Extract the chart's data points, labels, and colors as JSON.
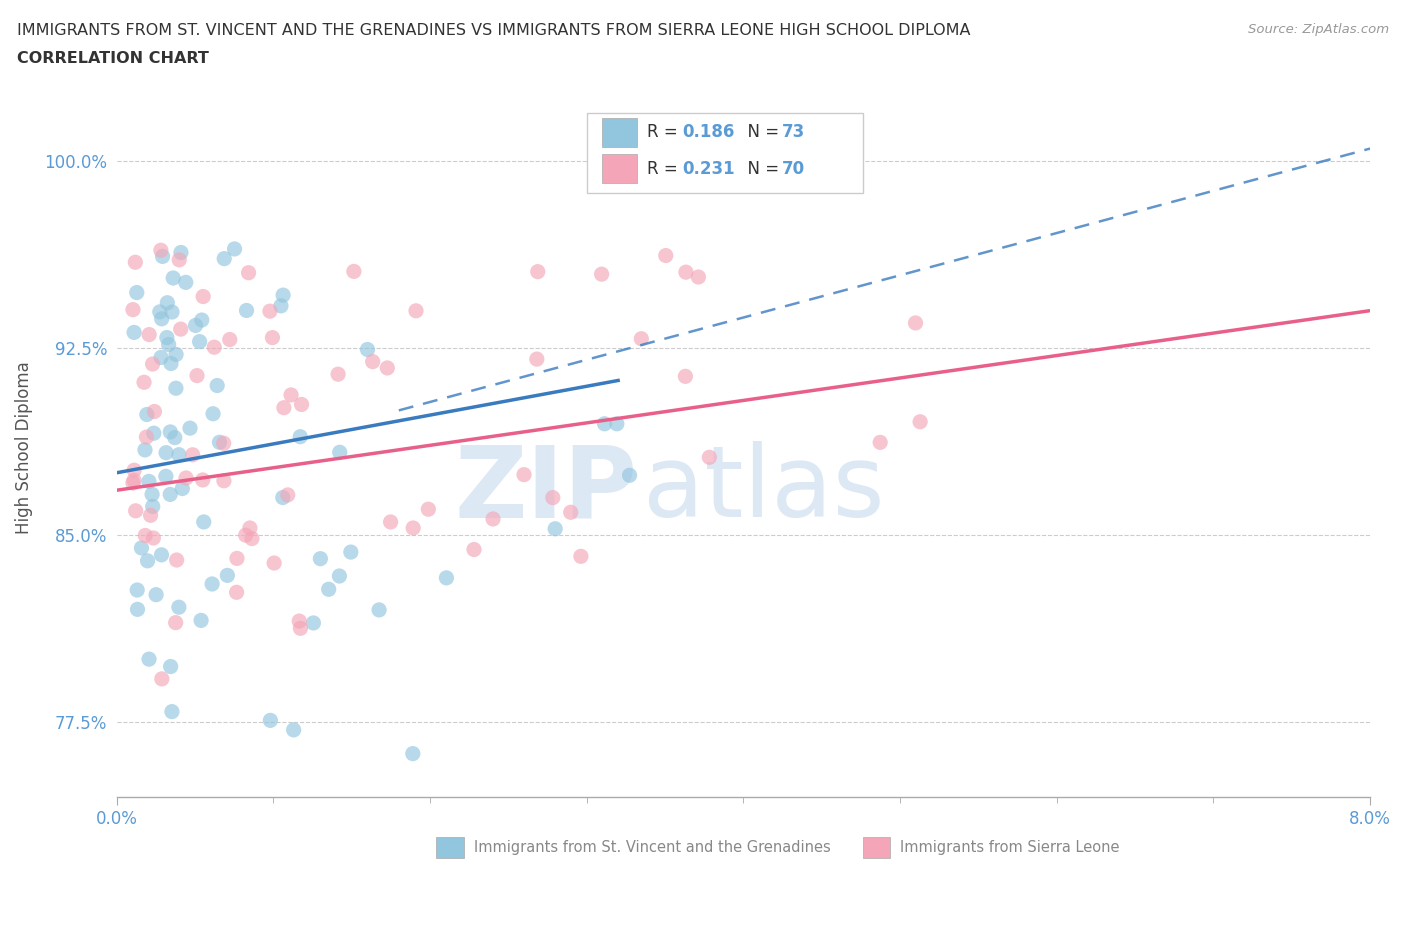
{
  "title_line1": "IMMIGRANTS FROM ST. VINCENT AND THE GRENADINES VS IMMIGRANTS FROM SIERRA LEONE HIGH SCHOOL DIPLOMA",
  "title_line2": "CORRELATION CHART",
  "source_text": "Source: ZipAtlas.com",
  "ylabel": "High School Diploma",
  "x_min": 0.0,
  "x_max": 0.08,
  "y_min": 0.745,
  "y_max": 1.025,
  "yticks": [
    0.775,
    0.85,
    0.925,
    1.0
  ],
  "ytick_labels": [
    "77.5%",
    "85.0%",
    "92.5%",
    "100.0%"
  ],
  "color_blue": "#92c5de",
  "color_pink": "#f4a6b8",
  "color_trend_blue": "#3a7bbf",
  "color_trend_pink": "#e8608a",
  "color_axis": "#5b9bd5",
  "background_color": "#ffffff",
  "watermark_zip": "ZIP",
  "watermark_atlas": "atlas",
  "legend_entry1_r": "R = 0.186",
  "legend_entry1_n": "N = 73",
  "legend_entry2_r": "R = 0.231",
  "legend_entry2_n": "N = 70"
}
